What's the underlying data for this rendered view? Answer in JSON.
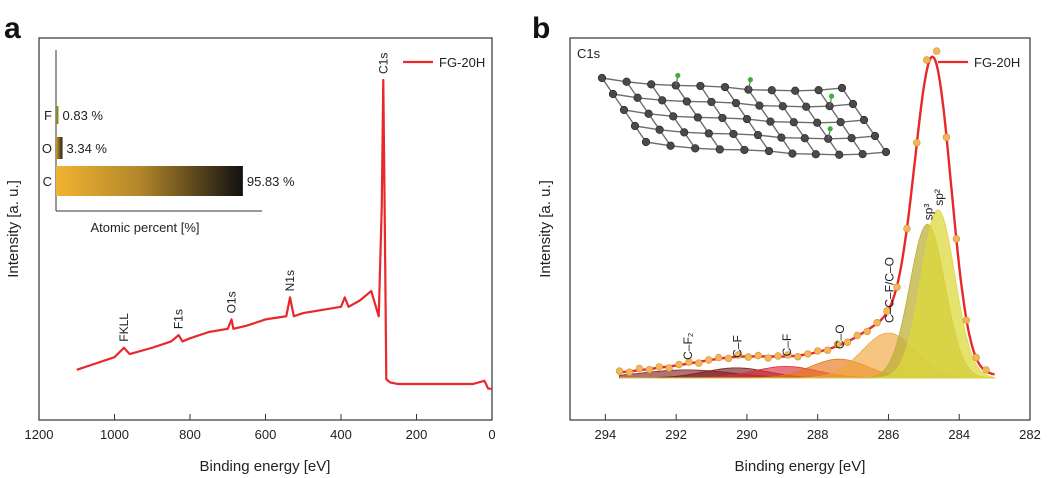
{
  "panel_a": {
    "letter": "a",
    "xlabel": "Binding energy [eV]",
    "ylabel": "Intensity [a. u.]",
    "x_ticks": [
      "1200",
      "1000",
      "800",
      "600",
      "400",
      "200",
      "0"
    ],
    "legend": "FG-20H",
    "peaks": [
      "FKLL",
      "F1s",
      "O1s",
      "N1s",
      "C1s"
    ],
    "inset": {
      "xlabel": "Atomic percent [%]",
      "labels": [
        "F",
        "O",
        "C"
      ],
      "value_labels": [
        "0.83 %",
        "3.34 %",
        "95.83 %"
      ]
    }
  },
  "panel_b": {
    "letter": "b",
    "xlabel": "Binding energy [eV]",
    "ylabel": "Intensity [a. u.]",
    "x_ticks": [
      "294",
      "292",
      "290",
      "288",
      "286",
      "284",
      "282"
    ],
    "legend": "FG-20H",
    "corner": "C1s",
    "components": [
      "C–F₂",
      "C–F",
      "C–F",
      "C–O",
      "C–C–F/C–O",
      "sp³",
      "sp²"
    ]
  },
  "colors": {
    "fit_line": "#e8282a",
    "points": "#f2b55a",
    "bar_start": "#f0b431",
    "bar_end": "#111111"
  },
  "chart_data": [
    {
      "type": "line",
      "title": "",
      "xlabel": "Binding energy [eV]",
      "ylabel": "Intensity [a. u.]",
      "xlim": [
        1200,
        0
      ],
      "x_ticks": [
        1200,
        1000,
        800,
        600,
        400,
        200,
        0
      ],
      "series": [
        {
          "name": "FG-20H",
          "x": [
            1100,
            1050,
            1000,
            975,
            960,
            900,
            850,
            830,
            820,
            800,
            750,
            700,
            690,
            685,
            650,
            600,
            545,
            535,
            525,
            500,
            450,
            400,
            390,
            380,
            350,
            320,
            300,
            292,
            288,
            284,
            280,
            270,
            250,
            200,
            150,
            100,
            50,
            20,
            10,
            0
          ],
          "y": [
            0.08,
            0.1,
            0.12,
            0.15,
            0.13,
            0.15,
            0.17,
            0.19,
            0.17,
            0.18,
            0.2,
            0.21,
            0.24,
            0.21,
            0.22,
            0.24,
            0.25,
            0.31,
            0.25,
            0.26,
            0.27,
            0.28,
            0.31,
            0.28,
            0.3,
            0.33,
            0.25,
            0.6,
            1.0,
            0.55,
            0.05,
            0.04,
            0.035,
            0.035,
            0.035,
            0.035,
            0.035,
            0.045,
            0.02,
            0.02
          ]
        }
      ],
      "annotations": [
        "FKLL",
        "F1s",
        "O1s",
        "N1s",
        "C1s"
      ],
      "legend_position": "top-right",
      "inset": {
        "type": "bar",
        "orientation": "horizontal",
        "categories": [
          "F",
          "O",
          "C"
        ],
        "values": [
          0.83,
          3.34,
          95.83
        ],
        "value_labels": [
          "0.83 %",
          "3.34 %",
          "95.83 %"
        ],
        "xlabel": "Atomic percent [%]"
      }
    },
    {
      "type": "line",
      "title": "",
      "xlabel": "Binding energy [eV]",
      "ylabel": "Intensity [a. u.]",
      "xlim": [
        295,
        282
      ],
      "x_ticks": [
        294,
        292,
        290,
        288,
        286,
        284,
        282
      ],
      "corner_label": "C1s",
      "legend_position": "top-right",
      "series": [
        {
          "name": "FG-20H",
          "role": "fit"
        },
        {
          "name": "",
          "role": "measured points"
        }
      ],
      "components": [
        {
          "label": "C–F₂",
          "center": 291.7,
          "height": 0.028,
          "width": 1.3,
          "color": "#8a2424"
        },
        {
          "label": "C–F",
          "center": 290.3,
          "height": 0.035,
          "width": 0.9,
          "color": "#7a1e22"
        },
        {
          "label": "C–F",
          "center": 288.9,
          "height": 0.04,
          "width": 0.9,
          "color": "#d9303a"
        },
        {
          "label": "C–O",
          "center": 287.4,
          "height": 0.065,
          "width": 0.8,
          "color": "#e6761c"
        },
        {
          "label": "C–C–F/C–O",
          "center": 286.0,
          "height": 0.155,
          "width": 0.75,
          "color": "#efa63e"
        },
        {
          "label": "sp³",
          "center": 284.9,
          "height": 0.53,
          "width": 0.5,
          "color": "#bcb03a"
        },
        {
          "label": "sp²",
          "center": 284.6,
          "height": 0.58,
          "width": 0.48,
          "color": "#dcd83c"
        }
      ]
    }
  ]
}
